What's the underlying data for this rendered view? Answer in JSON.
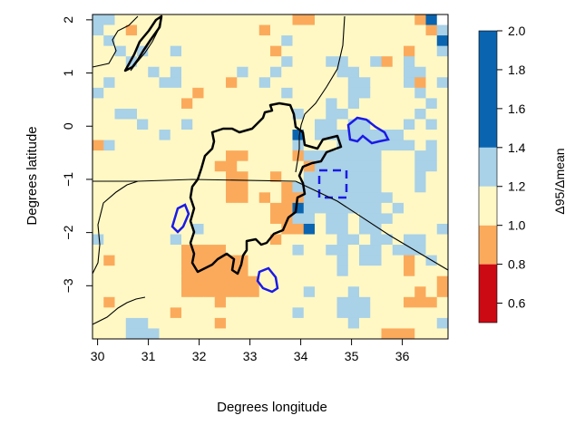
{
  "chart_data": {
    "type": "heatmap",
    "title": "",
    "xlabel": "Degrees longitude",
    "ylabel": "Degrees latitude",
    "xlim": [
      29.9,
      36.9
    ],
    "ylim": [
      -4.0,
      2.1
    ],
    "cell_size_deg": 0.2,
    "x_ticks": [
      30,
      31,
      32,
      33,
      34,
      35,
      36
    ],
    "y_ticks": [
      2,
      1,
      0,
      -1,
      -2,
      -3
    ],
    "colorbar": {
      "label": "Δ95/Δmean",
      "ticks": [
        0.6,
        0.8,
        1.0,
        1.2,
        1.4,
        1.6,
        1.8,
        2.0
      ],
      "bins": [
        {
          "min": 0.5,
          "max": 0.8,
          "color": "#cc0a14"
        },
        {
          "min": 0.8,
          "max": 1.0,
          "color": "#fbaa5c"
        },
        {
          "min": 1.0,
          "max": 1.2,
          "color": "#fff8c4"
        },
        {
          "min": 1.2,
          "max": 1.4,
          "color": "#a9d1e7"
        },
        {
          "min": 1.4,
          "max": 2.0,
          "color": "#0a64b0"
        }
      ]
    },
    "grid_rows_top_to_bottom": [
      "BBYYYYYYYYYYYYYYYYOOYYYYYYYYYODW",
      "BYYOYYYYYYYYYYYOYYYYYYYYYYYYYYOB",
      "YBYYYYYYYYYYYYYYYBYYYYYYYYYYYYYD",
      "YYBYBYYBYYYYYYYYOYYYYYYYYYYYOYYB",
      "YYYBYYYYYYYYYYYYYBYYYBBYYBOYBYYY",
      "YYYYYBYBYYYYYBYYBYYYYYBBYYYYBBYY",
      "YBYYYYBBYYYYOYYBYYYYYYYBBYYYBOYB",
      "BYYYYYYYYOYYYYYYYBYYYYYBBYYYYBYY",
      "YYYYYYYYOYYYYYYYYYYYYBYBYYYYYYBY",
      "YYBBYYYYYYYYYYYYYYBYYBBYYYYYYBYY",
      "YYYYBYYYBYYYYYYYYYYYBBYBBYYYBYBY",
      "YYYYYYBYYYYYYYYYYYDYBBBBBBBBYYYY",
      "OBYYYYYYYYYYYYYYYYBYYYBBBBBBBYBY",
      "YYYYYYYYYYYYOOYYYYOBBBBBBBYYYBBY",
      "YYYYYYYYYYYOOYYYYYYOBBBBBBYYYBBY",
      "YYYYYYYYYYYYOOYYOYYBBBBBBBYYYBYY",
      "YYYYYYYYYYYYOOYYYOBBBBBBBBYYYBYY",
      "YYYYYYYYYYYYOOYOYOOBBBBBBBBYYYYY",
      "YYYYYYYYYYYYYYYYOODBBBBBBBYBYYYY",
      "YYYYYYYYYYYYYYYYOOBBYBBYBBBYYYYY",
      "YYYYYYYYYBYYYYYYYOODYBBYBBYYYYYB",
      "BYYYYYYBYYYYYYYYOYYYYYBBYBBYBBYY",
      "YYYYYYYYOOOOYYYYYYBYYBBYBBYBBBYY",
      "YOYYYYYYOOOOOOYYYYYYYYBYBBYYOYBY",
      "YYYYYYYYOOOOOOYYYYYYYYBYYYYYOYYY",
      "YYYYYYYYOOOOOOOYYYYYYYYYYYYYYYYO",
      "YYYYYYYYOOOOOOOYYYYBYYYBYYYYYOYO",
      "YOYYYYYYYYYOYYYYYYYYYYBBBYYYOOOY",
      "YYYYYYYOYYYYYYYYYYBYYYBBBYYYYYYY",
      "YYYBBYYYYYYOYYYYYYYYYYYBYYYYYYYB",
      "YYYBBBYYYYYYYYYYYYYYYYYYYYOOOYYY"
    ],
    "grid_legend": {
      "D": "1.4–2.0",
      "B": "1.2–1.4",
      "Y": "1.0–1.2",
      "O": "0.8–1.0",
      "W": "no data"
    }
  }
}
